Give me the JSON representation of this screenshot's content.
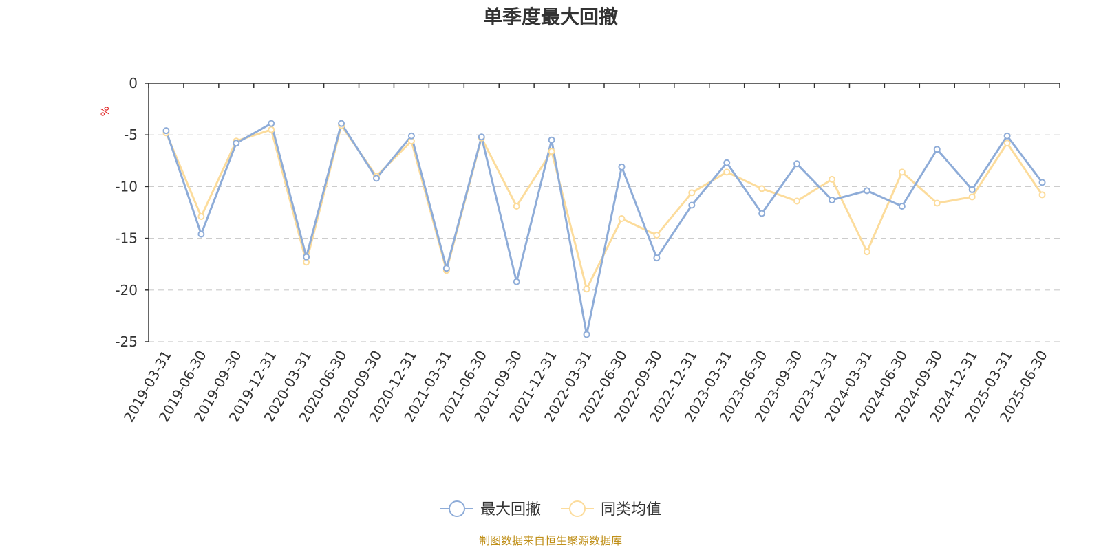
{
  "chart_data": {
    "type": "line",
    "title": "单季度最大回撤",
    "ylabel": "%",
    "ylim": [
      -25,
      0
    ],
    "yticks": [
      0,
      -5,
      -10,
      -15,
      -20,
      -25
    ],
    "grid": true,
    "legend_position": "bottom-center",
    "categories": [
      "2019-03-31",
      "2019-06-30",
      "2019-09-30",
      "2019-12-31",
      "2020-03-31",
      "2020-06-30",
      "2020-09-30",
      "2020-12-31",
      "2021-03-31",
      "2021-06-30",
      "2021-09-30",
      "2021-12-31",
      "2022-03-31",
      "2022-06-30",
      "2022-09-30",
      "2022-12-31",
      "2023-03-31",
      "2023-06-30",
      "2023-09-30",
      "2023-12-31",
      "2024-03-31",
      "2024-06-30",
      "2024-09-30",
      "2024-12-31",
      "2025-03-31",
      "2025-06-30"
    ],
    "series": [
      {
        "name": "最大回撤",
        "color": "#8eacd8",
        "values": [
          -4.6,
          -14.6,
          -5.8,
          -3.9,
          -16.8,
          -3.9,
          -9.2,
          -5.1,
          -17.9,
          -5.2,
          -19.2,
          -5.5,
          -24.3,
          -8.1,
          -16.9,
          -11.8,
          -7.7,
          -12.6,
          -7.8,
          -11.3,
          -10.4,
          -11.9,
          -6.4,
          -10.3,
          -5.1,
          -9.6
        ]
      },
      {
        "name": "同类均值",
        "color": "#fcdc9c",
        "values": [
          -4.8,
          -12.9,
          -5.6,
          -4.5,
          -17.3,
          -4.1,
          -9.0,
          -5.6,
          -18.1,
          -5.3,
          -11.9,
          -6.6,
          -19.9,
          -13.1,
          -14.7,
          -10.6,
          -8.6,
          -10.2,
          -11.4,
          -9.3,
          -16.3,
          -8.6,
          -11.6,
          -11.0,
          -5.8,
          -10.8
        ]
      }
    ],
    "source": "制图数据来自恒生聚源数据库"
  }
}
